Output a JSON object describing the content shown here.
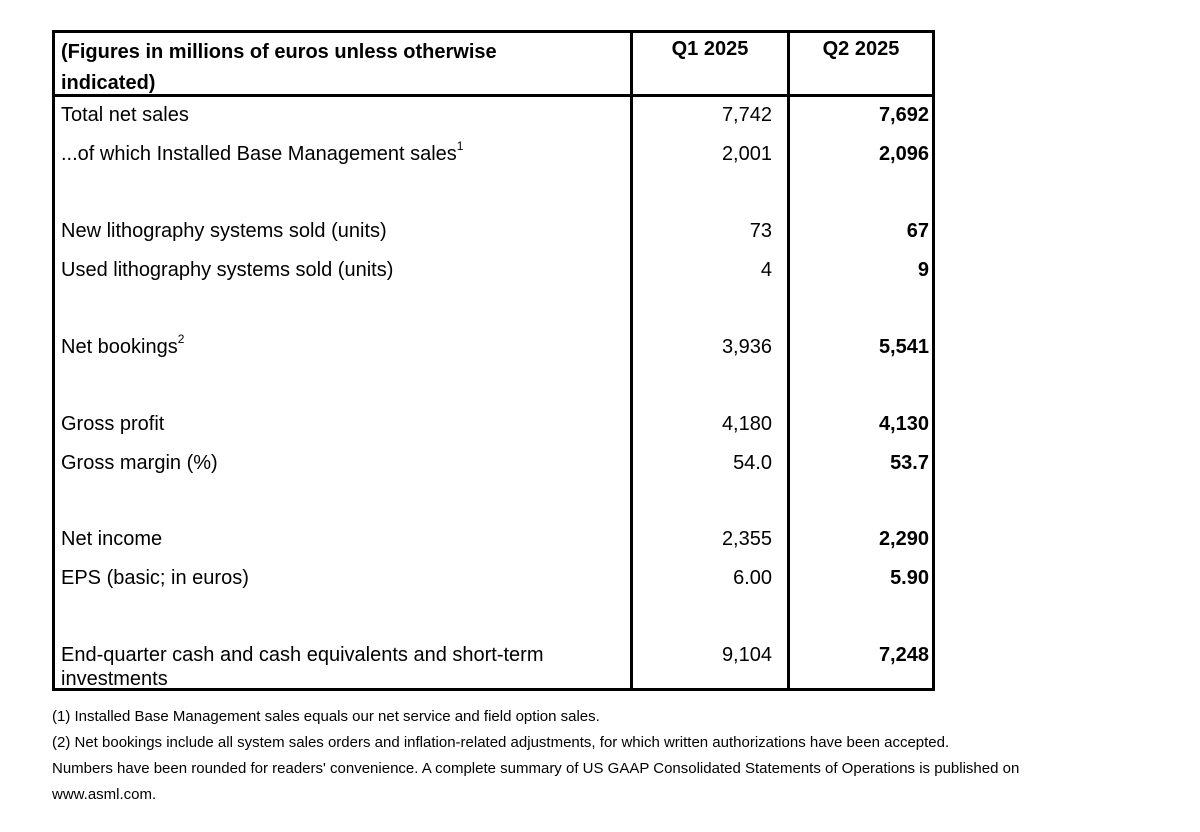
{
  "table": {
    "header": {
      "label": "(Figures in millions of euros unless otherwise indicated)",
      "q1": "Q1 2025",
      "q2": "Q2 2025"
    },
    "rows": [
      {
        "label": "Total net sales",
        "sup": "",
        "q1": "7,742",
        "q2": "7,692"
      },
      {
        "label": "...of which Installed Base Management sales",
        "sup": "1",
        "q1": "2,001",
        "q2": "2,096"
      },
      {
        "label": "New lithography systems sold (units)",
        "sup": "",
        "q1": "73",
        "q2": "67"
      },
      {
        "label": "Used lithography systems sold (units)",
        "sup": "",
        "q1": "4",
        "q2": "9"
      },
      {
        "label": "Net bookings",
        "sup": "2",
        "q1": "3,936",
        "q2": "5,541"
      },
      {
        "label": "Gross profit",
        "sup": "",
        "q1": "4,180",
        "q2": "4,130"
      },
      {
        "label": "Gross margin (%)",
        "sup": "",
        "q1": "54.0",
        "q2": "53.7"
      },
      {
        "label": "Net income",
        "sup": "",
        "q1": "2,355",
        "q2": "2,290"
      },
      {
        "label": "EPS (basic; in euros)",
        "sup": "",
        "q1": "6.00",
        "q2": "5.90"
      },
      {
        "label": "End-quarter cash and cash equivalents and short-term investments",
        "sup": "",
        "q1": "9,104",
        "q2": "7,248"
      }
    ]
  },
  "footnotes": [
    "(1) Installed Base Management sales equals our net service and field option sales.",
    "(2) Net bookings include all system sales orders and inflation-related adjustments, for which written authorizations have been accepted.",
    "Numbers have been rounded for readers' convenience. A complete summary of US GAAP Consolidated Statements of Operations is published on",
    "www.asml.com."
  ]
}
